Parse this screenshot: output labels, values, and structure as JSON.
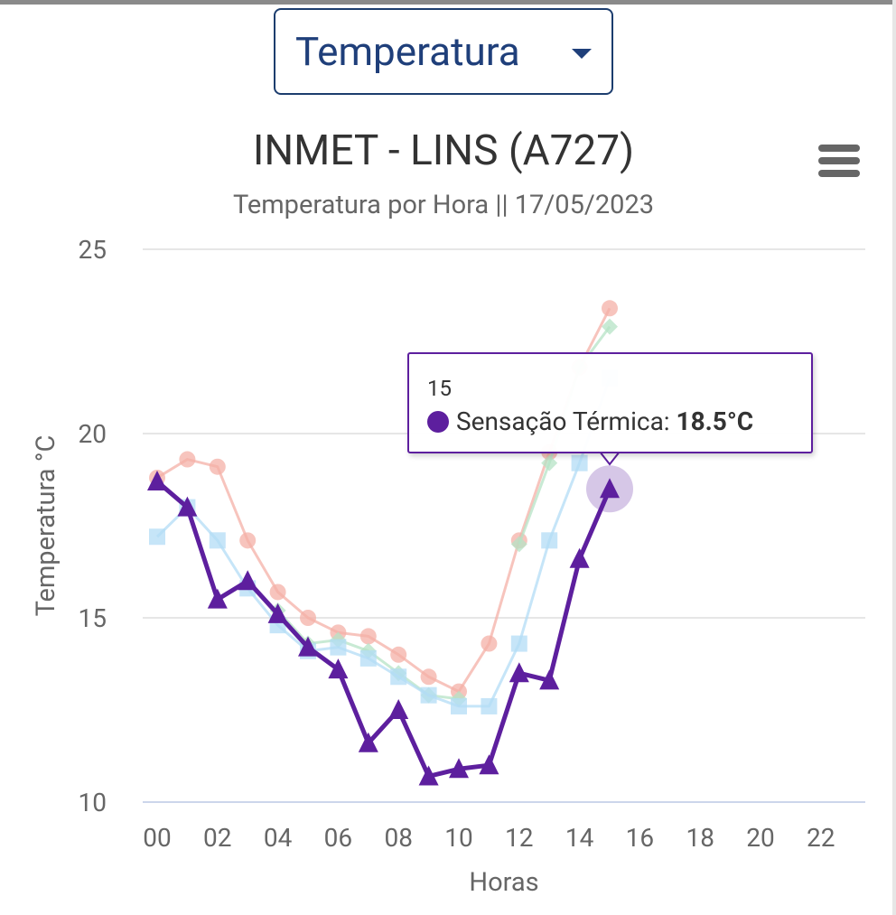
{
  "selector": {
    "value": "Temperatura"
  },
  "chart_data": {
    "type": "line",
    "title": "INMET - LINS (A727)",
    "subtitle": "Temperatura por Hora || 17/05/2023",
    "xlabel": "Horas",
    "ylabel": "Temperatura °C",
    "ylim": [
      10,
      25
    ],
    "yticks": [
      "10",
      "15",
      "20",
      "25"
    ],
    "xticks": [
      "00",
      "02",
      "04",
      "06",
      "08",
      "10",
      "12",
      "14",
      "16",
      "18",
      "20",
      "22"
    ],
    "grid": true,
    "x": [
      0,
      1,
      2,
      3,
      4,
      5,
      6,
      7,
      8,
      9,
      10,
      11,
      12,
      13,
      14,
      15
    ],
    "series": [
      {
        "color": "#f4b0a7",
        "marker": "circle",
        "values": [
          18.8,
          19.3,
          19.1,
          17.1,
          15.7,
          15.0,
          14.6,
          14.5,
          14.0,
          13.4,
          13.0,
          14.3,
          17.1,
          19.5,
          21.8,
          23.4
        ]
      },
      {
        "color": "#b6e3c6",
        "marker": "diamond",
        "values": [
          null,
          null,
          null,
          null,
          15.2,
          14.3,
          14.4,
          14.1,
          13.5,
          12.9,
          12.8,
          null,
          17.0,
          19.2,
          21.8,
          22.9
        ]
      },
      {
        "color": "#b3dcf5",
        "marker": "square",
        "values": [
          17.2,
          18.0,
          17.1,
          15.8,
          14.8,
          14.1,
          14.2,
          13.9,
          13.4,
          12.9,
          12.6,
          12.6,
          14.3,
          17.1,
          19.2,
          21.5
        ]
      },
      {
        "name": "Sensação Térmica",
        "color": "#5d1f9e",
        "marker": "triangle",
        "values": [
          18.7,
          18.0,
          15.5,
          16.0,
          15.1,
          14.2,
          13.6,
          11.6,
          12.5,
          10.7,
          10.9,
          11.0,
          13.5,
          13.3,
          16.6,
          18.5
        ]
      }
    ],
    "tooltip": {
      "x": "15",
      "series": "Sensação Térmica",
      "label": "Sensação Térmica:",
      "value": "18.5°C"
    }
  },
  "icons": {
    "menu": "hamburger-menu-icon",
    "dropdown": "caret-down-icon"
  }
}
